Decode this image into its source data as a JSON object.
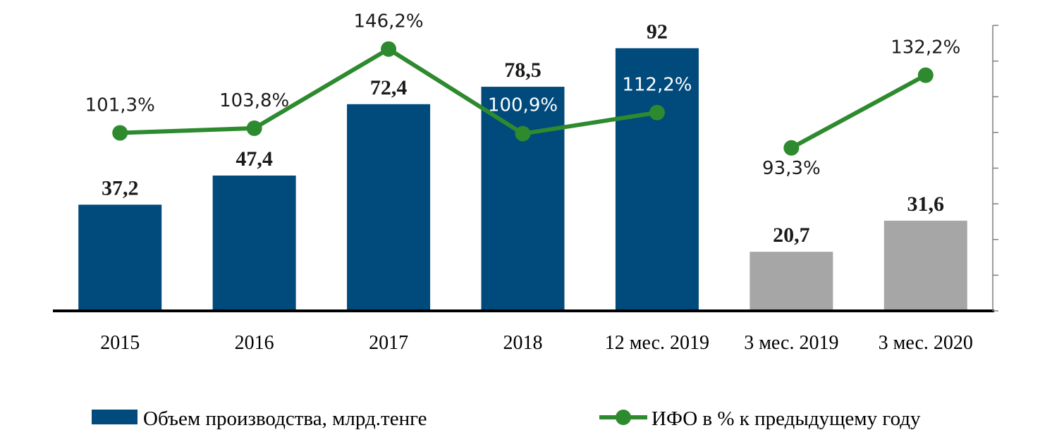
{
  "chart_data": {
    "type": "bar",
    "categories": [
      "2015",
      "2016",
      "2017",
      "2018",
      "12 мес. 2019",
      "3 мес. 2019",
      "3 мес. 2020"
    ],
    "series": [
      {
        "name": "Объем производства, млрд.тенге",
        "type": "bar",
        "values": [
          37.2,
          47.4,
          72.4,
          78.5,
          92,
          20.7,
          31.6
        ],
        "labels": [
          "37,2",
          "47,4",
          "72,4",
          "78,5",
          "92",
          "20,7",
          "31,6"
        ],
        "colors": [
          "#004a7c",
          "#004a7c",
          "#004a7c",
          "#004a7c",
          "#004a7c",
          "#a6a6a6",
          "#a6a6a6"
        ]
      },
      {
        "name": "ИФО в % к предыдущему году",
        "type": "line",
        "color": "#2e8a2e",
        "values": [
          101.3,
          103.8,
          146.2,
          100.9,
          112.2,
          93.3,
          132.2
        ],
        "labels": [
          "101,3%",
          "103,8%",
          "146,2%",
          "100,9%",
          "112,2%",
          "93,3%",
          "132,2%"
        ],
        "segments": [
          [
            0,
            4
          ],
          [
            5,
            6
          ]
        ]
      }
    ],
    "ylim": [
      0,
      100
    ],
    "grid": false,
    "legend": "bottom"
  }
}
